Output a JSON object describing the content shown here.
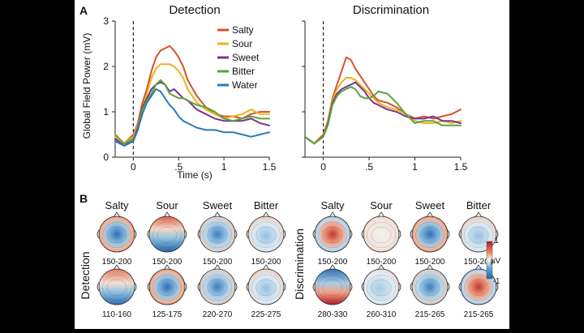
{
  "panel_labels": {
    "a": "A",
    "b": "B"
  },
  "colors": {
    "Salty": "#d4542a",
    "Sour": "#f0b020",
    "Sweet": "#7a3490",
    "Bitter": "#5aa53a",
    "Water": "#2a7ab8"
  },
  "chart_data": [
    {
      "type": "line",
      "title": "Detection",
      "xlabel": "Time (s)",
      "ylabel": "Global Field Power (mV)",
      "xlim": [
        -0.2,
        1.5
      ],
      "ylim": [
        0,
        3
      ],
      "x_ticks": [
        {
          "v": 0,
          "t": "0"
        },
        {
          "v": 0.5,
          "t": ".5"
        },
        {
          "v": 1,
          "t": "1"
        },
        {
          "v": 1.5,
          "t": "1.5"
        }
      ],
      "y_ticks": [
        {
          "v": 0,
          "t": "0"
        },
        {
          "v": 1,
          "t": "1"
        },
        {
          "v": 2,
          "t": "2"
        },
        {
          "v": 3,
          "t": "3"
        }
      ],
      "stimulus_onset": 0,
      "legend": "top-right",
      "x": [
        -0.2,
        -0.1,
        0.0,
        0.05,
        0.1,
        0.15,
        0.2,
        0.25,
        0.3,
        0.35,
        0.4,
        0.45,
        0.5,
        0.55,
        0.6,
        0.7,
        0.8,
        0.9,
        1.0,
        1.1,
        1.2,
        1.3,
        1.4,
        1.5
      ],
      "series": [
        {
          "name": "Salty",
          "values": [
            0.4,
            0.3,
            0.5,
            0.75,
            1.2,
            1.5,
            1.9,
            2.2,
            2.35,
            2.4,
            2.45,
            2.35,
            2.2,
            2.0,
            1.7,
            1.35,
            1.1,
            0.95,
            0.9,
            0.9,
            0.85,
            0.95,
            1.0,
            1.0
          ]
        },
        {
          "name": "Sour",
          "values": [
            0.45,
            0.3,
            0.45,
            0.7,
            1.1,
            1.4,
            1.75,
            1.95,
            2.05,
            2.05,
            2.05,
            2.0,
            1.9,
            1.75,
            1.5,
            1.2,
            1.05,
            0.95,
            0.85,
            0.9,
            0.95,
            1.05,
            0.95,
            0.95
          ]
        },
        {
          "name": "Sweet",
          "values": [
            0.4,
            0.25,
            0.4,
            0.65,
            1.1,
            1.3,
            1.5,
            1.6,
            1.65,
            1.6,
            1.45,
            1.5,
            1.4,
            1.3,
            1.25,
            1.05,
            0.95,
            0.85,
            0.8,
            0.8,
            0.8,
            0.85,
            0.75,
            0.7
          ]
        },
        {
          "name": "Bitter",
          "values": [
            0.5,
            0.3,
            0.4,
            0.6,
            1.05,
            1.25,
            1.4,
            1.6,
            1.7,
            1.6,
            1.4,
            1.35,
            1.3,
            1.3,
            1.25,
            1.15,
            1.1,
            1.0,
            0.85,
            0.8,
            0.85,
            0.9,
            0.85,
            0.85
          ]
        },
        {
          "name": "Water",
          "values": [
            0.35,
            0.25,
            0.35,
            0.6,
            0.95,
            1.2,
            1.35,
            1.5,
            1.45,
            1.3,
            1.15,
            1.05,
            0.9,
            0.8,
            0.75,
            0.65,
            0.6,
            0.6,
            0.55,
            0.55,
            0.5,
            0.45,
            0.5,
            0.55
          ]
        }
      ]
    },
    {
      "type": "line",
      "title": "Discrimination",
      "xlim": [
        -0.2,
        1.5
      ],
      "ylim": [
        0,
        3
      ],
      "x_ticks": [
        {
          "v": 0,
          "t": "0"
        },
        {
          "v": 0.5,
          "t": ".5"
        },
        {
          "v": 1,
          "t": "1"
        },
        {
          "v": 1.5,
          "t": "1.5"
        }
      ],
      "y_ticks": [
        {
          "v": 0,
          "t": "0"
        },
        {
          "v": 1,
          "t": "1"
        },
        {
          "v": 2,
          "t": "2"
        },
        {
          "v": 3,
          "t": "3"
        }
      ],
      "stimulus_onset": 0,
      "x": [
        -0.2,
        -0.1,
        0.0,
        0.05,
        0.1,
        0.15,
        0.2,
        0.25,
        0.3,
        0.35,
        0.4,
        0.45,
        0.5,
        0.55,
        0.6,
        0.7,
        0.8,
        0.9,
        1.0,
        1.1,
        1.2,
        1.3,
        1.4,
        1.5
      ],
      "series": [
        {
          "name": "Salty",
          "values": [
            0.45,
            0.3,
            0.5,
            0.8,
            1.3,
            1.6,
            1.9,
            2.2,
            2.15,
            1.95,
            1.8,
            1.65,
            1.5,
            1.35,
            1.25,
            1.2,
            1.1,
            0.95,
            0.85,
            0.9,
            0.85,
            0.9,
            0.95,
            1.05
          ]
        },
        {
          "name": "Sour",
          "values": [
            0.45,
            0.3,
            0.45,
            0.8,
            1.25,
            1.5,
            1.65,
            1.75,
            1.75,
            1.7,
            1.6,
            1.5,
            1.4,
            1.3,
            1.2,
            1.1,
            1.05,
            0.95,
            0.8,
            0.75,
            0.75,
            0.8,
            0.75,
            0.8
          ]
        },
        {
          "name": "Sweet",
          "values": [
            0.45,
            0.3,
            0.45,
            0.75,
            1.2,
            1.4,
            1.5,
            1.55,
            1.6,
            1.65,
            1.55,
            1.45,
            1.3,
            1.2,
            1.15,
            1.05,
            1.0,
            0.9,
            0.85,
            0.85,
            0.9,
            0.8,
            0.8,
            0.75
          ]
        },
        {
          "name": "Bitter",
          "values": [
            0.45,
            0.3,
            0.45,
            0.7,
            1.15,
            1.35,
            1.45,
            1.5,
            1.55,
            1.5,
            1.35,
            1.3,
            1.3,
            1.35,
            1.45,
            1.4,
            1.2,
            0.95,
            0.75,
            0.8,
            0.8,
            0.7,
            0.7,
            0.7
          ]
        }
      ]
    }
  ],
  "topomaps": {
    "detection_row_label": "Detection",
    "discrimination_row_label": "Discrimination",
    "columns": [
      "Salty",
      "Sour",
      "Sweet",
      "Bitter"
    ],
    "detection": {
      "top": [
        {
          "window": "150-200",
          "pattern": "blue-center-red-rim"
        },
        {
          "window": "150-200",
          "pattern": "red-top-blue-bottom"
        },
        {
          "window": "150-200",
          "pattern": "blue-center"
        },
        {
          "window": "150-200",
          "pattern": "faint-blue-center"
        }
      ],
      "bottom": [
        {
          "window": "110-160",
          "pattern": "blue-bottom-red-top"
        },
        {
          "window": "125-175",
          "pattern": "blue-center-red-rim"
        },
        {
          "window": "220-270",
          "pattern": "blue-center"
        },
        {
          "window": "225-275",
          "pattern": "faint-blue-center"
        }
      ]
    },
    "discrimination": {
      "top": [
        {
          "window": "150-200",
          "pattern": "red-center"
        },
        {
          "window": "150-200",
          "pattern": "neutral"
        },
        {
          "window": "150-200",
          "pattern": "blue-center-red-rim"
        },
        {
          "window": "150-200",
          "pattern": "faint-blue-center"
        }
      ],
      "bottom": [
        {
          "window": "280-330",
          "pattern": "red-bottom-blue-top"
        },
        {
          "window": "260-310",
          "pattern": "faint-blue"
        },
        {
          "window": "215-265",
          "pattern": "blue-center"
        },
        {
          "window": "215-265",
          "pattern": "red-center"
        }
      ]
    },
    "colorbar": {
      "max_label": "1",
      "min_label": "-1",
      "unit": "µV"
    }
  }
}
